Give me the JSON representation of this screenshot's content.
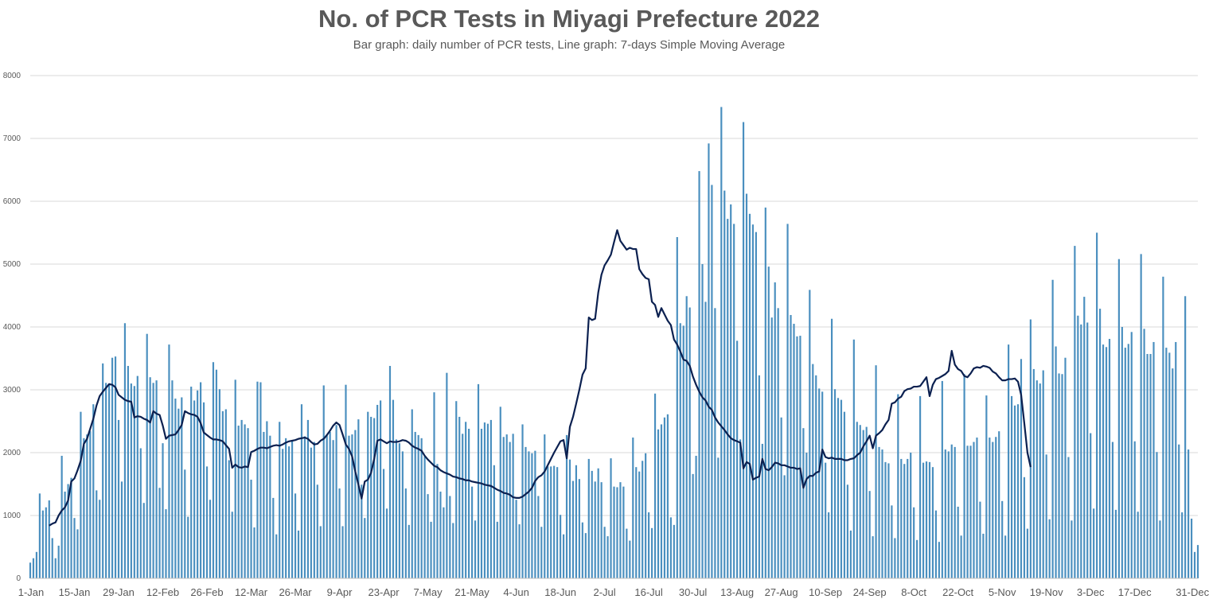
{
  "chart_data": {
    "type": "bar",
    "title": "No. of PCR Tests in Miyagi Prefecture 2022",
    "subtitle": "Bar graph: daily number of PCR tests, Line graph: 7-days Simple Moving Average",
    "xlabel": "",
    "ylabel": "",
    "ylim": [
      0,
      8000
    ],
    "yticks": [
      0,
      1000,
      2000,
      3000,
      4000,
      5000,
      6000,
      7000,
      8000
    ],
    "grid": true,
    "legend": "none",
    "x_range": [
      "1-Jan",
      "31-Dec"
    ],
    "x_tick_labels": [
      "1-Jan",
      "15-Jan",
      "29-Jan",
      "12-Feb",
      "26-Feb",
      "12-Mar",
      "26-Mar",
      "9-Apr",
      "23-Apr",
      "7-May",
      "21-May",
      "4-Jun",
      "18-Jun",
      "2-Jul",
      "16-Jul",
      "30-Jul",
      "13-Aug",
      "27-Aug",
      "10-Sep",
      "24-Sep",
      "8-Oct",
      "22-Oct",
      "5-Nov",
      "19-Nov",
      "3-Dec",
      "17-Dec",
      "31-Dec"
    ],
    "colors": {
      "bar": "#4a8fbf",
      "line": "#0b2050",
      "grid": "#d9d9d9",
      "text": "#595959"
    },
    "series": [
      {
        "type": "bar",
        "values": [
          250,
          320,
          420,
          1350,
          1080,
          1130,
          1240,
          640,
          320,
          520,
          1950,
          1380,
          1500,
          1600,
          960,
          780,
          2650,
          2230,
          2290,
          2340,
          2770,
          1400,
          1250,
          3420,
          3110,
          3100,
          3510,
          3530,
          2520,
          1540,
          4060,
          3380,
          3100,
          3060,
          3220,
          2070,
          1200,
          3890,
          3200,
          3110,
          3150,
          1440,
          2150,
          1100,
          3720,
          3150,
          2860,
          2700,
          2880,
          1730,
          980,
          3050,
          2830,
          2990,
          3120,
          2800,
          1780,
          1250,
          3440,
          3320,
          3010,
          2660,
          2690,
          1880,
          1060,
          3160,
          2430,
          2520,
          2450,
          2390,
          1570,
          810,
          3130,
          3120,
          2330,
          2500,
          2270,
          1280,
          700,
          2490,
          2060,
          2230,
          2100,
          2180,
          1350,
          760,
          2770,
          2260,
          2520,
          2080,
          2170,
          1490,
          830,
          3070,
          2280,
          2330,
          2200,
          2440,
          1430,
          830,
          3080,
          2270,
          2290,
          2360,
          2530,
          1490,
          960,
          2650,
          2570,
          2550,
          2760,
          2830,
          1740,
          1110,
          3380,
          2840,
          2210,
          2150,
          2020,
          1430,
          850,
          2690,
          2330,
          2280,
          2230,
          1940,
          1340,
          900,
          2960,
          1820,
          1380,
          1130,
          3270,
          1310,
          880,
          2820,
          2570,
          2300,
          2490,
          2380,
          1460,
          920,
          3090,
          2380,
          2480,
          2460,
          2520,
          1800,
          900,
          2730,
          2250,
          2290,
          2170,
          2300,
          1250,
          860,
          2450,
          2090,
          2020,
          1990,
          2030,
          1310,
          820,
          2290,
          1780,
          1780,
          1790,
          1770,
          1010,
          700,
          2280,
          1890,
          1550,
          1800,
          1580,
          890,
          720,
          1900,
          1710,
          1540,
          1750,
          1530,
          820,
          670,
          1910,
          1460,
          1450,
          1530,
          1460,
          790,
          600,
          2240,
          1770,
          1700,
          1870,
          1990,
          1050,
          800,
          2940,
          2370,
          2450,
          2560,
          2610,
          970,
          850,
          5430,
          4060,
          4020,
          4490,
          4310,
          1660,
          1950,
          6480,
          5000,
          4400,
          6920,
          6260,
          4300,
          1920,
          7500,
          6170,
          5720,
          5950,
          5640,
          3780,
          2210,
          7260,
          6120,
          5800,
          5630,
          5510,
          3230,
          2140,
          5900,
          4960,
          4150,
          4710,
          4300,
          2560,
          1640,
          5640,
          4190,
          4050,
          3850,
          3860,
          2390,
          2000,
          4590,
          3410,
          3230,
          3020,
          2970,
          1840,
          1050,
          4130,
          3010,
          2870,
          2840,
          2650,
          1490,
          760,
          3800,
          2490,
          2440,
          2360,
          2410,
          1390,
          670,
          3390,
          2090,
          2050,
          1850,
          1830,
          1160,
          640,
          2930,
          1900,
          1820,
          1900,
          2000,
          1130,
          610,
          2900,
          1840,
          1860,
          1850,
          1770,
          1080,
          580,
          3140,
          2050,
          2020,
          2130,
          2090,
          1140,
          680,
          3250,
          2110,
          2110,
          2170,
          2240,
          1220,
          710,
          2910,
          2240,
          2170,
          2250,
          2340,
          1230,
          680,
          3720,
          2900,
          2750,
          2770,
          3490,
          1610,
          790,
          4120,
          3330,
          3150,
          3100,
          3310,
          1970,
          940,
          4750,
          3690,
          3260,
          3250,
          3510,
          1930,
          920,
          5290,
          4180,
          4040,
          4480,
          4070,
          2310,
          1110,
          5500,
          4290,
          3720,
          3680,
          3810,
          2170,
          1090,
          5080,
          4000,
          3670,
          3730,
          3920,
          2180,
          1060,
          5160,
          3970,
          3570,
          3570,
          3760,
          2010,
          920,
          4800,
          3670,
          3590,
          3340,
          3760,
          2130,
          1050,
          4490,
          2050,
          950,
          420,
          530
        ]
      },
      {
        "type": "line",
        "start_index": 6,
        "values": [
          840,
          870,
          890,
          1000,
          1080,
          1130,
          1240,
          1540,
          1590,
          1720,
          1870,
          2140,
          2220,
          2380,
          2540,
          2750,
          2900,
          2970,
          3030,
          3090,
          3080,
          3040,
          2920,
          2880,
          2840,
          2820,
          2810,
          2560,
          2580,
          2570,
          2540,
          2520,
          2480,
          2660,
          2620,
          2600,
          2430,
          2220,
          2270,
          2280,
          2290,
          2360,
          2440,
          2660,
          2630,
          2610,
          2600,
          2570,
          2470,
          2320,
          2280,
          2240,
          2210,
          2210,
          2200,
          2180,
          2120,
          2060,
          1760,
          1810,
          1770,
          1760,
          1780,
          1770,
          2010,
          2030,
          2060,
          2080,
          2080,
          2070,
          2090,
          2110,
          2120,
          2110,
          2130,
          2160,
          2180,
          2190,
          2200,
          2220,
          2230,
          2240,
          2220,
          2170,
          2130,
          2140,
          2190,
          2220,
          2280,
          2350,
          2430,
          2480,
          2440,
          2290,
          2130,
          2060,
          1940,
          1700,
          1490,
          1270,
          1540,
          1570,
          1680,
          1900,
          2190,
          2210,
          2180,
          2150,
          2180,
          2170,
          2170,
          2180,
          2200,
          2190,
          2160,
          2110,
          2080,
          2060,
          2030,
          1950,
          1890,
          1840,
          1790,
          1770,
          1720,
          1690,
          1670,
          1650,
          1620,
          1610,
          1590,
          1580,
          1560,
          1560,
          1540,
          1530,
          1520,
          1510,
          1490,
          1480,
          1470,
          1440,
          1410,
          1390,
          1360,
          1350,
          1330,
          1290,
          1280,
          1280,
          1300,
          1340,
          1380,
          1440,
          1550,
          1610,
          1640,
          1700,
          1800,
          1900,
          2000,
          2090,
          2180,
          2200,
          1910,
          2410,
          2570,
          2780,
          3000,
          3240,
          3340,
          4150,
          4110,
          4130,
          4550,
          4830,
          4980,
          5060,
          5150,
          5350,
          5540,
          5370,
          5300,
          5230,
          5260,
          5240,
          5240,
          4920,
          4840,
          4780,
          4760,
          4400,
          4350,
          4160,
          4300,
          4200,
          4100,
          4030,
          3800,
          3720,
          3610,
          3480,
          3460,
          3380,
          3210,
          3080,
          2970,
          2880,
          2830,
          2730,
          2680,
          2560,
          2480,
          2420,
          2360,
          2290,
          2230,
          2200,
          2180,
          2160,
          1750,
          1850,
          1820,
          1570,
          1600,
          1620,
          1900,
          1740,
          1720,
          1770,
          1840,
          1830,
          1800,
          1800,
          1780,
          1760,
          1760,
          1740,
          1750,
          1440,
          1580,
          1630,
          1630,
          1680,
          1700,
          2050,
          1930,
          1910,
          1920,
          1900,
          1900,
          1900,
          1880,
          1880,
          1900,
          1910,
          1960,
          2000,
          2100,
          2180,
          2270,
          2070,
          2270,
          2310,
          2360,
          2450,
          2520,
          2780,
          2800,
          2860,
          2890,
          2980,
          3010,
          3020,
          3050,
          3050,
          3060,
          3130,
          3200,
          2900,
          3080,
          3170,
          3190,
          3220,
          3250,
          3300,
          3620,
          3400,
          3330,
          3300,
          3220,
          3200,
          3260,
          3340,
          3360,
          3350,
          3380,
          3370,
          3350,
          3290,
          3260,
          3200,
          3150,
          3150,
          3170,
          3170,
          3180,
          3130,
          2920,
          2470,
          2000,
          1770
        ]
      }
    ]
  }
}
